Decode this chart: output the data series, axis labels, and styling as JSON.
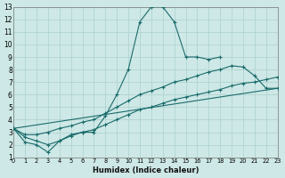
{
  "xlabel": "Humidex (Indice chaleur)",
  "bg_color": "#cde8e6",
  "grid_color": "#b0d4d2",
  "line_color": "#1a6b6b",
  "xlim": [
    0,
    23
  ],
  "ylim": [
    1,
    13
  ],
  "xtick_vals": [
    0,
    1,
    2,
    3,
    4,
    5,
    6,
    7,
    8,
    9,
    10,
    11,
    12,
    13,
    14,
    15,
    16,
    17,
    18,
    19,
    20,
    21,
    22,
    23
  ],
  "ytick_vals": [
    1,
    2,
    3,
    4,
    5,
    6,
    7,
    8,
    9,
    10,
    11,
    12,
    13
  ],
  "curve1_x": [
    0,
    1,
    2,
    3,
    4,
    5,
    6,
    7,
    8,
    9,
    10,
    11,
    12,
    13,
    14,
    15,
    16,
    17,
    18
  ],
  "curve1_y": [
    3.3,
    2.2,
    2.0,
    1.4,
    2.3,
    2.8,
    3.0,
    3.0,
    4.3,
    6.0,
    8.0,
    11.8,
    13.0,
    13.0,
    11.8,
    9.0,
    9.0,
    8.8,
    9.0
  ],
  "curve2_x": [
    0,
    1,
    2,
    3,
    4,
    5,
    6,
    7,
    8,
    9,
    10,
    11,
    12,
    13,
    14,
    15,
    16,
    17,
    18,
    19,
    20,
    21,
    22,
    23
  ],
  "curve2_y": [
    3.3,
    2.8,
    2.8,
    3.0,
    3.3,
    3.5,
    3.8,
    4.0,
    4.5,
    5.0,
    5.5,
    6.0,
    6.3,
    6.6,
    7.0,
    7.2,
    7.5,
    7.8,
    8.0,
    8.3,
    8.2,
    7.5,
    6.5,
    6.5
  ],
  "curve3_x": [
    0,
    23
  ],
  "curve3_y": [
    3.3,
    6.5
  ],
  "curve4_x": [
    0,
    1,
    2,
    3,
    4,
    5,
    6,
    7,
    8,
    9,
    10,
    11,
    12,
    13,
    14,
    15,
    16,
    17,
    18,
    19,
    20,
    21,
    22,
    23
  ],
  "curve4_y": [
    3.3,
    2.6,
    2.3,
    2.0,
    2.3,
    2.7,
    3.0,
    3.2,
    3.6,
    4.0,
    4.4,
    4.8,
    5.0,
    5.3,
    5.6,
    5.8,
    6.0,
    6.2,
    6.4,
    6.7,
    6.9,
    7.0,
    7.2,
    7.4
  ]
}
